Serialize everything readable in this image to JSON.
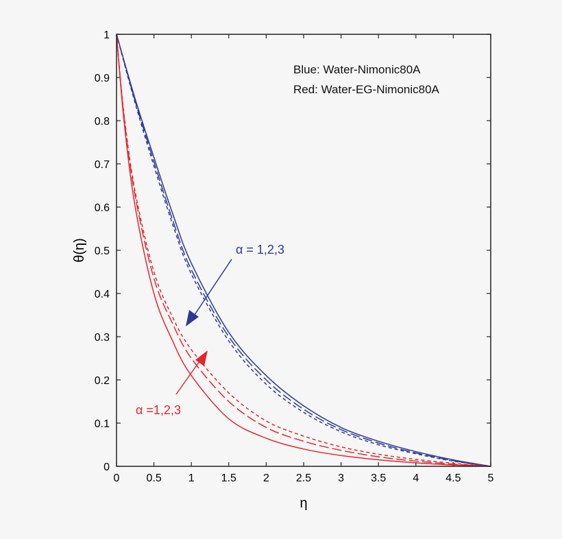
{
  "chart_data": {
    "type": "line",
    "title": "",
    "xlabel": "η",
    "ylabel": "θ(η)",
    "xlim": [
      0,
      5
    ],
    "ylim": [
      0,
      1
    ],
    "xticks": [
      "0",
      "0.5",
      "1",
      "1.5",
      "2",
      "2.5",
      "3",
      "3.5",
      "4",
      "4.5",
      "5"
    ],
    "yticks": [
      "0",
      "0.1",
      "0.2",
      "0.3",
      "0.4",
      "0.5",
      "0.6",
      "0.7",
      "0.8",
      "0.9",
      "1"
    ],
    "grid": false,
    "colors": {
      "blue": "#2b3a97",
      "red": "#e5262d"
    },
    "annotations": [
      {
        "text": "Blue: Water-Nimonic80A",
        "color": "#111111"
      },
      {
        "text": "Red: Water-EG-Nimonic80A",
        "color": "#111111"
      },
      {
        "text": "α = 1,2,3",
        "color": "#2b3a97"
      },
      {
        "text": "α =1,2,3",
        "color": "#e5262d"
      }
    ],
    "series": [
      {
        "color": "blue",
        "dash": "solid",
        "x": [
          0,
          0.25,
          0.5,
          0.75,
          1,
          1.5,
          2,
          2.5,
          3,
          3.5,
          4,
          4.5,
          5
        ],
        "y": [
          1,
          0.85,
          0.715,
          0.585,
          0.47,
          0.31,
          0.21,
          0.14,
          0.09,
          0.058,
          0.034,
          0.015,
          0
        ]
      },
      {
        "color": "blue",
        "dash": "long",
        "x": [
          0,
          0.25,
          0.5,
          0.75,
          1,
          1.5,
          2,
          2.5,
          3,
          3.5,
          4,
          4.5,
          5
        ],
        "y": [
          1,
          0.845,
          0.705,
          0.57,
          0.455,
          0.3,
          0.2,
          0.132,
          0.085,
          0.054,
          0.031,
          0.013,
          0
        ]
      },
      {
        "color": "blue",
        "dash": "short",
        "x": [
          0,
          0.25,
          0.5,
          0.75,
          1,
          1.5,
          2,
          2.5,
          3,
          3.5,
          4,
          4.5,
          5
        ],
        "y": [
          1,
          0.84,
          0.695,
          0.56,
          0.445,
          0.29,
          0.19,
          0.125,
          0.08,
          0.05,
          0.029,
          0.012,
          0
        ]
      },
      {
        "color": "red",
        "dash": "solid",
        "x": [
          0,
          0.1,
          0.25,
          0.5,
          0.75,
          1,
          1.5,
          2,
          2.5,
          3,
          3.5,
          4,
          4.5,
          5
        ],
        "y": [
          1,
          0.8,
          0.6,
          0.4,
          0.29,
          0.21,
          0.11,
          0.065,
          0.04,
          0.025,
          0.015,
          0.008,
          0.003,
          0
        ]
      },
      {
        "color": "red",
        "dash": "long",
        "x": [
          0,
          0.1,
          0.25,
          0.5,
          0.75,
          1,
          1.5,
          2,
          2.5,
          3,
          3.5,
          4,
          4.5,
          5
        ],
        "y": [
          1,
          0.81,
          0.625,
          0.435,
          0.33,
          0.25,
          0.15,
          0.09,
          0.058,
          0.037,
          0.022,
          0.012,
          0.005,
          0
        ]
      },
      {
        "color": "red",
        "dash": "short",
        "x": [
          0,
          0.1,
          0.25,
          0.5,
          0.75,
          1,
          1.5,
          2,
          2.5,
          3,
          3.5,
          4,
          4.5,
          5
        ],
        "y": [
          1,
          0.815,
          0.635,
          0.45,
          0.345,
          0.27,
          0.17,
          0.105,
          0.07,
          0.045,
          0.028,
          0.016,
          0.007,
          0
        ]
      }
    ]
  }
}
